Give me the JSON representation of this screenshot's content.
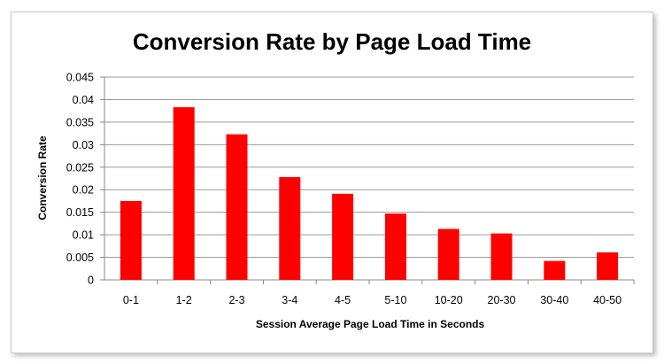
{
  "chart_data": {
    "type": "bar",
    "title": "Conversion Rate by Page Load Time",
    "xlabel": "Session Average Page Load Time in Seconds",
    "ylabel": "Conversion Rate",
    "categories": [
      "0-1",
      "1-2",
      "2-3",
      "3-4",
      "4-5",
      "5-10",
      "10-20",
      "20-30",
      "30-40",
      "40-50"
    ],
    "values": [
      0.0175,
      0.0383,
      0.0323,
      0.0228,
      0.0191,
      0.0147,
      0.0113,
      0.0103,
      0.0042,
      0.0061
    ],
    "ylim": [
      0,
      0.045
    ],
    "yticks": [
      "0",
      "0.005",
      "0.01",
      "0.015",
      "0.02",
      "0.025",
      "0.03",
      "0.035",
      "0.04",
      "0.045"
    ],
    "grid": true,
    "legend": "none",
    "bar_color": "#ff0000"
  }
}
